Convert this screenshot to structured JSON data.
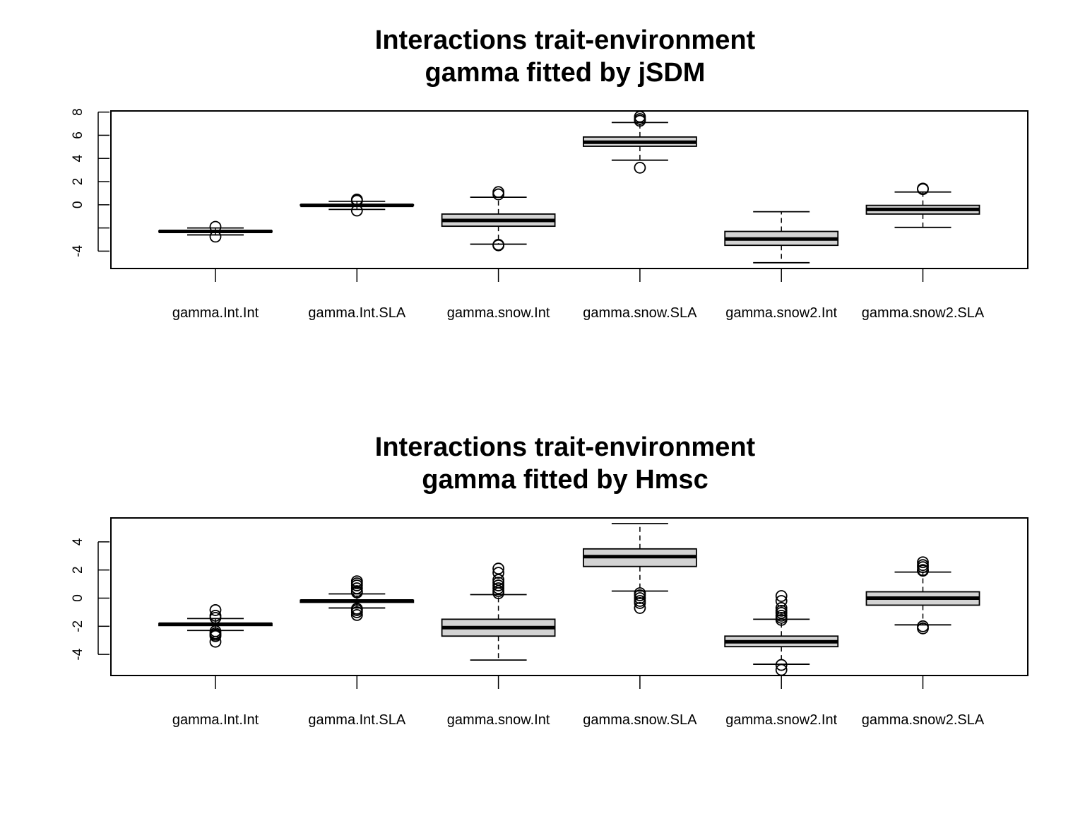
{
  "chart_data": [
    {
      "type": "box",
      "title": "Interactions trait-environment\ngamma fitted by jSDM",
      "title_lines": [
        "Interactions trait-environment",
        "gamma fitted by jSDM"
      ],
      "xlabel": "",
      "ylabel": "",
      "categories": [
        "gamma.Int.Int",
        "gamma.Int.SLA",
        "gamma.snow.Int",
        "gamma.snow.SLA",
        "gamma.snow2.Int",
        "gamma.snow2.SLA"
      ],
      "y_ticks": [
        -4,
        -2,
        0,
        2,
        4,
        6,
        8
      ],
      "y_tick_labels": [
        "-4",
        "",
        "0",
        "2",
        "4",
        "6",
        "8"
      ],
      "ylim": [
        -5.5,
        8.1
      ],
      "grid": false,
      "box_fill": "#d3d3d3",
      "boxes": [
        {
          "min": -2.6,
          "q1": -2.35,
          "median": -2.3,
          "q3": -2.25,
          "max": -2.0,
          "outliers": [
            -1.9,
            -2.75
          ]
        },
        {
          "min": -0.4,
          "q1": -0.05,
          "median": -0.05,
          "q3": 0.0,
          "max": 0.3,
          "outliers": [
            0.45,
            0.35,
            -0.5
          ]
        },
        {
          "min": -3.4,
          "q1": -1.85,
          "median": -1.35,
          "q3": -0.8,
          "max": 0.65,
          "outliers": [
            1.1,
            0.9,
            -3.45,
            -3.5
          ]
        },
        {
          "min": 3.85,
          "q1": 5.05,
          "median": 5.4,
          "q3": 5.85,
          "max": 7.1,
          "outliers": [
            7.6,
            7.4,
            7.25,
            3.2
          ]
        },
        {
          "min": -5.0,
          "q1": -3.5,
          "median": -2.95,
          "q3": -2.3,
          "max": -0.6,
          "outliers": []
        },
        {
          "min": -1.95,
          "q1": -0.8,
          "median": -0.4,
          "q3": -0.05,
          "max": 1.1,
          "outliers": [
            1.4,
            1.35
          ]
        }
      ]
    },
    {
      "type": "box",
      "title": "Interactions trait-environment\ngamma fitted by Hmsc",
      "title_lines": [
        "Interactions trait-environment",
        "gamma fitted by Hmsc"
      ],
      "xlabel": "",
      "ylabel": "",
      "categories": [
        "gamma.Int.Int",
        "gamma.Int.SLA",
        "gamma.snow.Int",
        "gamma.snow.SLA",
        "gamma.snow2.Int",
        "gamma.snow2.SLA"
      ],
      "y_ticks": [
        -4,
        -2,
        0,
        2,
        4
      ],
      "y_tick_labels": [
        "-4",
        "-2",
        "0",
        "2",
        "4"
      ],
      "ylim": [
        -5.5,
        5.7
      ],
      "grid": false,
      "box_fill": "#d3d3d3",
      "boxes": [
        {
          "min": -2.3,
          "q1": -1.95,
          "median": -1.85,
          "q3": -1.8,
          "max": -1.45,
          "outliers": [
            -0.85,
            -1.25,
            -1.4,
            -2.35,
            -2.5,
            -2.6,
            -2.7,
            -3.1
          ]
        },
        {
          "min": -0.7,
          "q1": -0.3,
          "median": -0.2,
          "q3": -0.15,
          "max": 0.3,
          "outliers": [
            1.2,
            1.05,
            0.9,
            0.7,
            0.5,
            0.4,
            -0.75,
            -0.85,
            -1.0,
            -1.2
          ]
        },
        {
          "min": -4.4,
          "q1": -2.7,
          "median": -2.1,
          "q3": -1.5,
          "max": 0.25,
          "outliers": [
            2.1,
            1.8,
            1.3,
            1.1,
            0.9,
            0.7,
            0.5,
            0.35
          ]
        },
        {
          "min": 0.5,
          "q1": 2.25,
          "median": 2.95,
          "q3": 3.5,
          "max": 5.3,
          "outliers": [
            0.35,
            0.2,
            0.0,
            -0.2,
            -0.35,
            -0.7
          ]
        },
        {
          "min": -4.7,
          "q1": -3.45,
          "median": -3.1,
          "q3": -2.7,
          "max": -1.5,
          "outliers": [
            0.15,
            -0.2,
            -0.7,
            -0.9,
            -1.05,
            -1.25,
            -1.4,
            -1.55,
            -4.75,
            -5.1
          ]
        },
        {
          "min": -1.9,
          "q1": -0.5,
          "median": 0.0,
          "q3": 0.45,
          "max": 1.85,
          "outliers": [
            2.55,
            2.35,
            2.2,
            2.0,
            1.95,
            -2.0,
            -2.15
          ]
        }
      ]
    }
  ]
}
